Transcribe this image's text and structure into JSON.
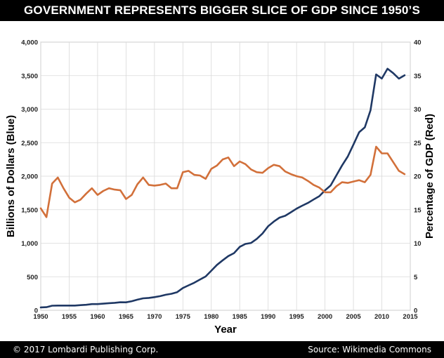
{
  "header": {
    "title": "GOVERNMENT REPRESENTS BIGGER SLICE OF GDP SINCE 1950’S"
  },
  "footer": {
    "copyright": "© 2017 Lombardi Publishing Corp.",
    "source": "Source: Wikimedia Commons"
  },
  "colors": {
    "blue_series": "#1f3864",
    "red_series": "#d2703a",
    "grid": "#d9d9d9",
    "plot_bg": "#ffffff"
  },
  "chart_data": {
    "type": "line",
    "title": "GOVERNMENT REPRESENTS BIGGER SLICE OF GDP SINCE 1950’S",
    "xlabel": "Year",
    "ylabel": "Billions of Dollars (Blue)",
    "y2label": "Percentage of GDP (Red)",
    "xlim": [
      1950,
      2015
    ],
    "ylim": [
      0,
      4000
    ],
    "y2lim": [
      0,
      40
    ],
    "grid": true,
    "x_ticks": [
      "1950",
      "1955",
      "1960",
      "1965",
      "1970",
      "1975",
      "1980",
      "1985",
      "1990",
      "1995",
      "2000",
      "2005",
      "2010",
      "2015"
    ],
    "y_ticks": [
      "0",
      "500",
      "1,000",
      "1,500",
      "2,000",
      "2,500",
      "3,000",
      "3,500",
      "4,000"
    ],
    "y2_ticks": [
      "0",
      "5",
      "10",
      "15",
      "20",
      "25",
      "30",
      "35",
      "40"
    ],
    "series": [
      {
        "axis": "left",
        "color": "#1f3864",
        "x": [
          1950,
          1951,
          1952,
          1953,
          1954,
          1955,
          1956,
          1957,
          1958,
          1959,
          1960,
          1961,
          1962,
          1963,
          1964,
          1965,
          1966,
          1967,
          1968,
          1969,
          1970,
          1971,
          1972,
          1973,
          1974,
          1975,
          1976,
          1977,
          1978,
          1979,
          1980,
          1981,
          1982,
          1983,
          1984,
          1985,
          1986,
          1987,
          1988,
          1989,
          1990,
          1991,
          1992,
          1993,
          1994,
          1995,
          1996,
          1997,
          1998,
          1999,
          2000,
          2001,
          2002,
          2003,
          2004,
          2005,
          2006,
          2007,
          2008,
          2009,
          2010,
          2011,
          2012,
          2013,
          2014
        ],
        "values": [
          43,
          46,
          68,
          70,
          70,
          70,
          70,
          76,
          82,
          92,
          92,
          98,
          106,
          111,
          119,
          118,
          135,
          158,
          178,
          184,
          196,
          210,
          231,
          246,
          270,
          332,
          372,
          410,
          458,
          504,
          591,
          678,
          746,
          808,
          852,
          946,
          990,
          1004,
          1065,
          1144,
          1253,
          1324,
          1382,
          1409,
          1462,
          1516,
          1560,
          1601,
          1652,
          1702,
          1789,
          1863,
          2011,
          2160,
          2293,
          2472,
          2655,
          2729,
          2983,
          3518,
          3457,
          3603,
          3537,
          3455,
          3506
        ]
      },
      {
        "axis": "right",
        "color": "#d2703a",
        "x": [
          1950,
          1951,
          1952,
          1953,
          1954,
          1955,
          1956,
          1957,
          1958,
          1959,
          1960,
          1961,
          1962,
          1963,
          1964,
          1965,
          1966,
          1967,
          1968,
          1969,
          1970,
          1971,
          1972,
          1973,
          1974,
          1975,
          1976,
          1977,
          1978,
          1979,
          1980,
          1981,
          1982,
          1983,
          1984,
          1985,
          1986,
          1987,
          1988,
          1989,
          1990,
          1991,
          1992,
          1993,
          1994,
          1995,
          1996,
          1997,
          1998,
          1999,
          2000,
          2001,
          2002,
          2003,
          2004,
          2005,
          2006,
          2007,
          2008,
          2009,
          2010,
          2011,
          2012,
          2013,
          2014
        ],
        "values": [
          15.2,
          13.9,
          18.9,
          19.8,
          18.2,
          16.8,
          16.1,
          16.5,
          17.4,
          18.2,
          17.2,
          17.8,
          18.2,
          18.0,
          17.9,
          16.6,
          17.2,
          18.8,
          19.8,
          18.7,
          18.6,
          18.7,
          18.9,
          18.2,
          18.2,
          20.6,
          20.8,
          20.2,
          20.1,
          19.6,
          21.1,
          21.6,
          22.5,
          22.8,
          21.5,
          22.2,
          21.8,
          21.0,
          20.6,
          20.5,
          21.2,
          21.7,
          21.5,
          20.7,
          20.3,
          20.0,
          19.8,
          19.3,
          18.7,
          18.3,
          17.6,
          17.6,
          18.5,
          19.1,
          19.0,
          19.2,
          19.4,
          19.1,
          20.2,
          24.4,
          23.4,
          23.4,
          22.1,
          20.8,
          20.3
        ]
      }
    ]
  }
}
